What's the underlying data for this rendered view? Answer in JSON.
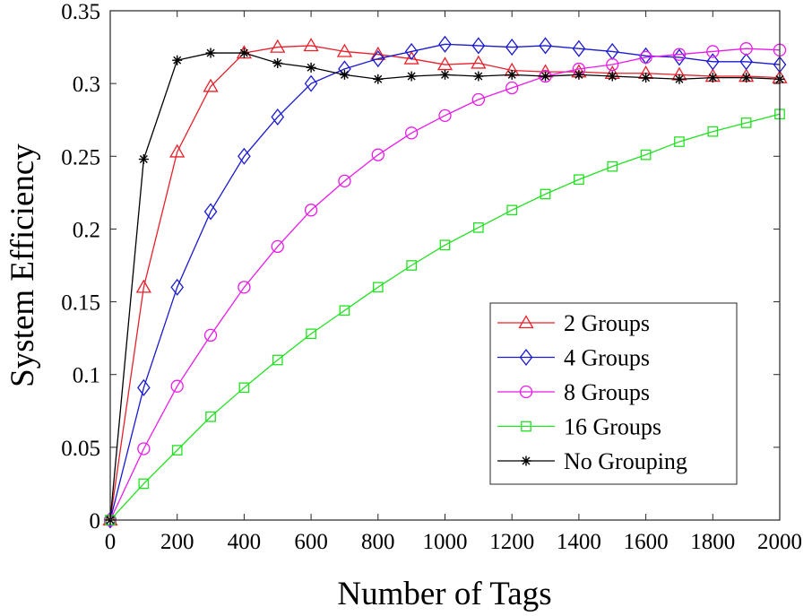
{
  "chart_data": {
    "type": "line",
    "title": "",
    "xlabel": "Number of Tags",
    "ylabel": "System Efficiency",
    "xlim": [
      0,
      2000
    ],
    "ylim": [
      0,
      0.35
    ],
    "x_ticks": [
      0,
      200,
      400,
      600,
      800,
      1000,
      1200,
      1400,
      1600,
      1800,
      2000
    ],
    "y_ticks": [
      0,
      0.05,
      0.1,
      0.15,
      0.2,
      0.25,
      0.3,
      0.35
    ],
    "x_tick_labels": [
      "0",
      "200",
      "400",
      "600",
      "800",
      "1000",
      "1200",
      "1400",
      "1600",
      "1800",
      "2000"
    ],
    "y_tick_labels": [
      "0",
      "0.05",
      "0.1",
      "0.15",
      "0.2",
      "0.25",
      "0.3",
      "0.35"
    ],
    "grid": false,
    "legend_position": "lower-right",
    "x": [
      0,
      100,
      200,
      300,
      400,
      500,
      600,
      700,
      800,
      900,
      1000,
      1100,
      1200,
      1300,
      1400,
      1500,
      1600,
      1700,
      1800,
      1900,
      2000
    ],
    "series": [
      {
        "name": "2 Groups",
        "color": "#e8202a",
        "marker": "triangle",
        "values": [
          0,
          0.16,
          0.253,
          0.298,
          0.321,
          0.325,
          0.326,
          0.322,
          0.32,
          0.317,
          0.313,
          0.314,
          0.309,
          0.308,
          0.308,
          0.307,
          0.307,
          0.306,
          0.305,
          0.305,
          0.304
        ]
      },
      {
        "name": "4 Groups",
        "color": "#1a1ad0",
        "marker": "diamond",
        "values": [
          0,
          0.091,
          0.16,
          0.212,
          0.25,
          0.277,
          0.3,
          0.31,
          0.317,
          0.322,
          0.327,
          0.326,
          0.325,
          0.326,
          0.324,
          0.322,
          0.319,
          0.318,
          0.315,
          0.315,
          0.313
        ]
      },
      {
        "name": "8 Groups",
        "color": "#e81ce8",
        "marker": "circle",
        "values": [
          0,
          0.049,
          0.092,
          0.127,
          0.16,
          0.188,
          0.213,
          0.233,
          0.251,
          0.266,
          0.278,
          0.289,
          0.297,
          0.305,
          0.31,
          0.313,
          0.318,
          0.32,
          0.322,
          0.324,
          0.323
        ]
      },
      {
        "name": "16 Groups",
        "color": "#22e022",
        "marker": "square",
        "values": [
          0,
          0.025,
          0.048,
          0.071,
          0.091,
          0.11,
          0.128,
          0.144,
          0.16,
          0.175,
          0.189,
          0.201,
          0.213,
          0.224,
          0.234,
          0.243,
          0.251,
          0.26,
          0.267,
          0.273,
          0.279
        ]
      },
      {
        "name": "No Grouping",
        "color": "#000000",
        "marker": "asterisk",
        "values": [
          0,
          0.248,
          0.316,
          0.321,
          0.321,
          0.314,
          0.311,
          0.306,
          0.303,
          0.305,
          0.306,
          0.305,
          0.306,
          0.305,
          0.306,
          0.305,
          0.304,
          0.303,
          0.304,
          0.304,
          0.303
        ]
      }
    ]
  }
}
